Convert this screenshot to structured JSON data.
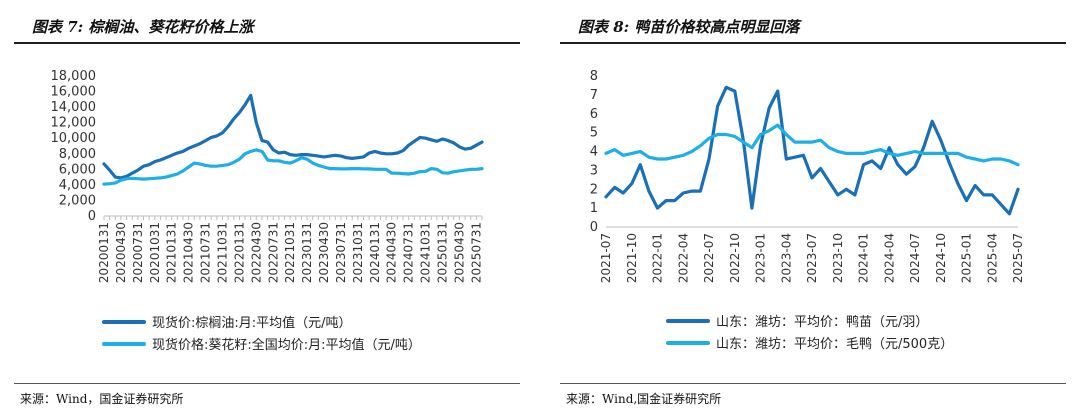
{
  "left": {
    "title": "图表 7:  棕榈油、葵花籽价格上涨",
    "source": "来源：Wind，国金证券研究所",
    "chart_data": {
      "type": "line",
      "title": "棕榈油、葵花籽价格上涨",
      "ylim": [
        0,
        18000
      ],
      "yticks": [
        "0",
        "2,000",
        "4,000",
        "6,000",
        "8,000",
        "10,000",
        "12,000",
        "14,000",
        "16,000",
        "18,000"
      ],
      "ytick_values": [
        0,
        2000,
        4000,
        6000,
        8000,
        10000,
        12000,
        14000,
        16000,
        18000
      ],
      "x_start": "2020-01",
      "x_count": 68,
      "xticks": [
        "20200131",
        "20200430",
        "20200731",
        "20201031",
        "20210131",
        "20210430",
        "20210731",
        "20211031",
        "20220131",
        "20220430",
        "20220731",
        "20221031",
        "20230131",
        "20230430",
        "20230731",
        "20231031",
        "20240131",
        "20240430",
        "20240731",
        "20241031",
        "20250131",
        "20250430",
        "20250731"
      ],
      "series": [
        {
          "name": "现货价:棕榈油:月:平均值（元/吨）",
          "color": "#1a70b8",
          "values": [
            6700,
            5900,
            5000,
            4900,
            5100,
            5500,
            5900,
            6400,
            6600,
            7000,
            7200,
            7500,
            7800,
            8100,
            8300,
            8700,
            9000,
            9300,
            9700,
            10100,
            10300,
            10700,
            11500,
            12500,
            13300,
            14300,
            15500,
            12000,
            9700,
            9500,
            8500,
            8100,
            8200,
            7900,
            7800,
            7900,
            7900,
            7800,
            7700,
            7600,
            7700,
            7800,
            7700,
            7500,
            7400,
            7500,
            7600,
            8100,
            8300,
            8100,
            8000,
            8000,
            8100,
            8400,
            9100,
            9600,
            10100,
            10000,
            9800,
            9600,
            9900,
            9700,
            9400,
            8900,
            8600,
            8700,
            9100,
            9500
          ]
        },
        {
          "name": "现货价格:葵花籽:全国均价:月:平均值（元/吨）",
          "color": "#1eaee8",
          "values": [
            4100,
            4150,
            4250,
            4600,
            4800,
            4850,
            4800,
            4750,
            4800,
            4850,
            4900,
            5000,
            5200,
            5400,
            5800,
            6300,
            6800,
            6700,
            6500,
            6400,
            6400,
            6500,
            6600,
            6900,
            7300,
            8000,
            8300,
            8500,
            8300,
            7200,
            7100,
            7100,
            6900,
            6800,
            7100,
            7500,
            7300,
            6800,
            6500,
            6300,
            6100,
            6100,
            6050,
            6050,
            6100,
            6100,
            6050,
            6050,
            6000,
            6000,
            6000,
            5500,
            5500,
            5450,
            5400,
            5500,
            5700,
            5750,
            6100,
            6000,
            5550,
            5500,
            5700,
            5800,
            5900,
            6000,
            6000,
            6100
          ]
        }
      ]
    },
    "legend": [
      {
        "label": "现货价:棕榈油:月:平均值（元/吨）",
        "color": "#1a70b8"
      },
      {
        "label": "现货价格:葵花籽:全国均价:月:平均值（元/吨）",
        "color": "#1eaee8"
      }
    ]
  },
  "right": {
    "title": "图表 8:  鸭苗价格较高点明显回落",
    "source": "来源：Wind,国金证券研究所",
    "chart_data": {
      "type": "line",
      "title": "鸭苗价格较高点明显回落",
      "ylim": [
        0,
        8
      ],
      "yticks": [
        "0",
        "1",
        "2",
        "3",
        "4",
        "5",
        "6",
        "7",
        "8"
      ],
      "ytick_values": [
        0,
        1,
        2,
        3,
        4,
        5,
        6,
        7,
        8
      ],
      "x_start": "2021-07",
      "x_count": 49,
      "xticks": [
        "2021-07",
        "2021-10",
        "2022-01",
        "2022-04",
        "2022-07",
        "2022-10",
        "2023-01",
        "2023-04",
        "2023-07",
        "2023-10",
        "2024-01",
        "2024-04",
        "2024-07",
        "2024-10",
        "2025-01",
        "2025-04",
        "2025-07"
      ],
      "series": [
        {
          "name": "山东：潍坊：平均价：鸭苗（元/羽）",
          "color": "#1a70b8",
          "values": [
            1.6,
            2.1,
            1.8,
            2.3,
            3.3,
            1.9,
            1.0,
            1.4,
            1.4,
            1.8,
            1.9,
            1.9,
            3.6,
            6.4,
            7.4,
            7.2,
            4.6,
            1.0,
            4.3,
            6.3,
            7.2,
            3.6,
            3.7,
            3.8,
            2.6,
            3.1,
            2.4,
            1.7,
            2.0,
            1.7,
            3.3,
            3.5,
            3.1,
            4.2,
            3.3,
            2.8,
            3.2,
            4.2,
            5.6,
            4.6,
            3.4,
            2.3,
            1.4,
            2.2,
            1.7,
            1.7,
            1.2,
            0.7,
            2.0
          ]
        },
        {
          "name": "山东：潍坊：平均价：毛鸭（元/500克）",
          "color": "#1eaee8",
          "values": [
            3.9,
            4.1,
            3.8,
            3.9,
            4.0,
            3.7,
            3.6,
            3.6,
            3.7,
            3.8,
            4.0,
            4.3,
            4.7,
            4.9,
            4.9,
            4.8,
            4.5,
            4.2,
            4.9,
            5.1,
            5.4,
            4.9,
            4.5,
            4.5,
            4.5,
            4.6,
            4.2,
            4.0,
            3.9,
            3.9,
            3.9,
            4.0,
            4.1,
            3.9,
            3.8,
            3.9,
            4.0,
            3.9,
            3.9,
            3.9,
            3.9,
            3.9,
            3.7,
            3.6,
            3.5,
            3.6,
            3.6,
            3.5,
            3.3
          ]
        }
      ]
    },
    "legend": [
      {
        "label": "山东：潍坊：平均价：鸭苗（元/羽）",
        "color": "#1a70b8"
      },
      {
        "label": "山东：潍坊：平均价：毛鸭（元/500克）",
        "color": "#1eaee8"
      }
    ]
  }
}
